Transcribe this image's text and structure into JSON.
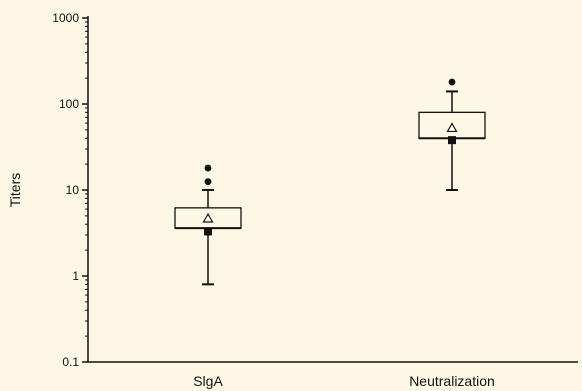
{
  "chart_data": {
    "type": "boxplot",
    "title": "",
    "xlabel": "",
    "ylabel": "Titers",
    "yscale": "log",
    "ylim": [
      0.1,
      1000
    ],
    "yticks": [
      0.1,
      1,
      10,
      100,
      1000
    ],
    "ytick_labels": [
      "0.1",
      "1",
      "10",
      "100",
      "1000"
    ],
    "grid": false,
    "legend": "none",
    "colors": {
      "background": "#fdf7e6",
      "ink": "#111111"
    },
    "categories": [
      "SlgA",
      "Neutralization"
    ],
    "boxes": [
      {
        "category": "SlgA",
        "whisker_low": 0.8,
        "q1": 3.6,
        "median": 3.6,
        "q3": 6.2,
        "whisker_high": 10,
        "mean": 4.6,
        "marked_value": 3.3,
        "outliers": [
          12.5,
          18
        ]
      },
      {
        "category": "Neutralization",
        "whisker_low": 10,
        "q1": 40,
        "median": 40,
        "q3": 80,
        "whisker_high": 140,
        "mean": 52,
        "marked_value": 38,
        "outliers": [
          180
        ]
      }
    ]
  }
}
